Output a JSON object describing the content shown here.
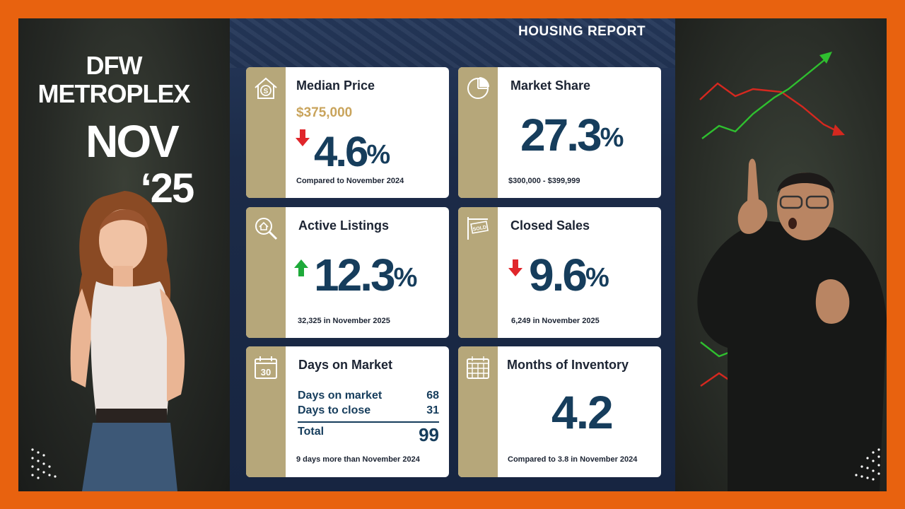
{
  "header": {
    "report_title": "HOUSING REPORT"
  },
  "title_block": {
    "line1": "DFW",
    "line2": "METROPLEX",
    "month": "NOV",
    "year": "‘25"
  },
  "cards": {
    "median_price": {
      "title": "Median Price",
      "price": "$375,000",
      "value": "4.6",
      "unit": "%",
      "direction": "down",
      "note": "Compared to November 2024",
      "icon": "house-dollar-icon"
    },
    "market_share": {
      "title": "Market Share",
      "value": "27.3",
      "unit": "%",
      "note": "$300,000 - $399,999",
      "icon": "pie-chart-icon"
    },
    "active_listings": {
      "title": "Active Listings",
      "value": "12.3",
      "unit": "%",
      "direction": "up",
      "note": "32,325 in November 2025",
      "icon": "house-search-icon"
    },
    "closed_sales": {
      "title": "Closed Sales",
      "value": "9.6",
      "unit": "%",
      "direction": "down",
      "note": "6,249 in November 2025",
      "icon": "sold-sign-icon",
      "icon_text": "SOLD"
    },
    "days_on_market": {
      "title": "Days on Market",
      "icon": "calendar-30-icon",
      "icon_text": "30",
      "rows": [
        {
          "label": "Days on market",
          "value": "68"
        },
        {
          "label": "Days to close",
          "value": "31"
        }
      ],
      "total_label": "Total",
      "total_value": "99",
      "note": "9 days more than November 2024"
    },
    "months_inventory": {
      "title": "Months of Inventory",
      "value": "4.2",
      "note": "Compared to 3.8 in November 2024",
      "icon": "calendar-grid-icon"
    }
  },
  "colors": {
    "frame": "#e8620f",
    "navy": "#163d5c",
    "gold": "#b6a77a",
    "price_gold": "#c9a45c",
    "up": "#1eaa3a",
    "down": "#e0262b"
  }
}
